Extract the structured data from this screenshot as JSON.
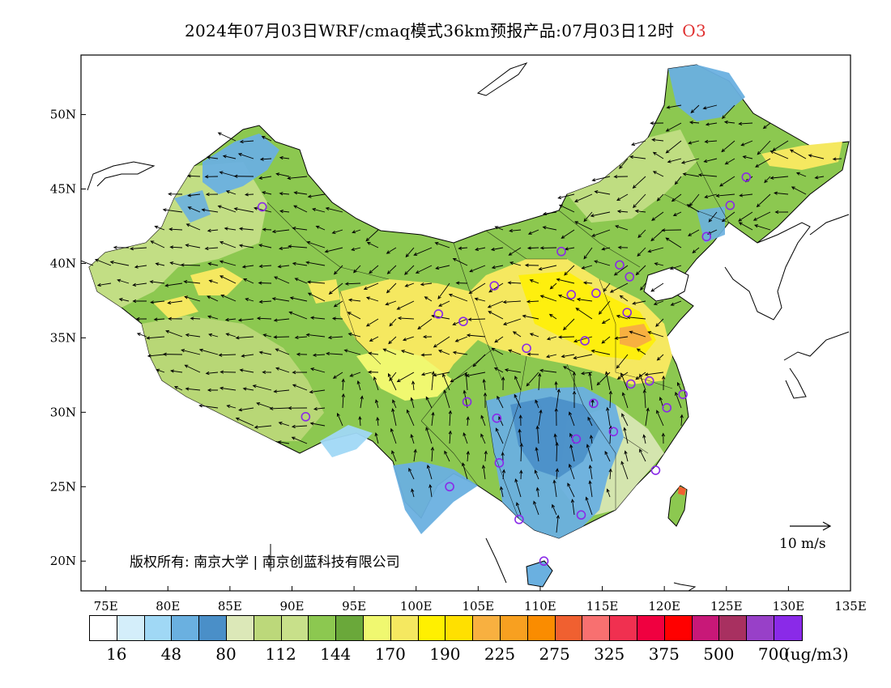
{
  "title": "2024年07月03日WRF/cmaq模式36km预报产品:07月03日12时",
  "pollutant": "O3",
  "map": {
    "lon_ticks": [
      "75E",
      "80E",
      "85E",
      "90E",
      "95E",
      "100E",
      "105E",
      "110E",
      "115E",
      "120E",
      "125E",
      "130E",
      "135E"
    ],
    "lat_ticks": [
      "20N",
      "25N",
      "30N",
      "35N",
      "40N",
      "45N",
      "50N"
    ],
    "lon_range": [
      73,
      135
    ],
    "lat_range": [
      18,
      54
    ]
  },
  "wind_reference": "10 m/s",
  "copyright": "版权所有: 南京大学 | 南京创蓝科技有限公司",
  "colorbar": {
    "colors": [
      "#ffffff",
      "#d4eefa",
      "#a0d8f5",
      "#6ab0e0",
      "#4a8fc8",
      "#dce8b8",
      "#bcd87a",
      "#c8e08a",
      "#8cc850",
      "#6aa83a",
      "#f0f870",
      "#f5e860",
      "#fff000",
      "#ffe000",
      "#f8b040",
      "#f8a020",
      "#fa8c00",
      "#f06030",
      "#f87070",
      "#f03050",
      "#f00040",
      "#ff0000",
      "#c81878",
      "#a83060",
      "#9840c8",
      "#8a2ae8"
    ],
    "labels": [
      "16",
      "48",
      "80",
      "112",
      "144",
      "170",
      "190",
      "225",
      "275",
      "325",
      "375",
      "500",
      "700"
    ],
    "unit": "(ug/m3)"
  },
  "monitoring_sites": [
    {
      "lon": 87.6,
      "lat": 43.8
    },
    {
      "lon": 91.1,
      "lat": 29.7
    },
    {
      "lon": 101.8,
      "lat": 36.6
    },
    {
      "lon": 103.8,
      "lat": 36.1
    },
    {
      "lon": 106.3,
      "lat": 38.5
    },
    {
      "lon": 111.7,
      "lat": 40.8
    },
    {
      "lon": 112.5,
      "lat": 37.9
    },
    {
      "lon": 114.5,
      "lat": 38.0
    },
    {
      "lon": 116.4,
      "lat": 39.9
    },
    {
      "lon": 117.2,
      "lat": 39.1
    },
    {
      "lon": 117.0,
      "lat": 36.7
    },
    {
      "lon": 113.6,
      "lat": 34.8
    },
    {
      "lon": 108.9,
      "lat": 34.3
    },
    {
      "lon": 117.3,
      "lat": 31.9
    },
    {
      "lon": 118.8,
      "lat": 32.1
    },
    {
      "lon": 121.5,
      "lat": 31.2
    },
    {
      "lon": 120.2,
      "lat": 30.3
    },
    {
      "lon": 114.3,
      "lat": 30.6
    },
    {
      "lon": 115.9,
      "lat": 28.7
    },
    {
      "lon": 112.9,
      "lat": 28.2
    },
    {
      "lon": 104.1,
      "lat": 30.7
    },
    {
      "lon": 106.5,
      "lat": 29.6
    },
    {
      "lon": 106.7,
      "lat": 26.6
    },
    {
      "lon": 102.7,
      "lat": 25.0
    },
    {
      "lon": 108.3,
      "lat": 22.8
    },
    {
      "lon": 113.3,
      "lat": 23.1
    },
    {
      "lon": 119.3,
      "lat": 26.1
    },
    {
      "lon": 110.3,
      "lat": 20.0
    },
    {
      "lon": 123.4,
      "lat": 41.8
    },
    {
      "lon": 125.3,
      "lat": 43.9
    },
    {
      "lon": 126.6,
      "lat": 45.8
    }
  ]
}
